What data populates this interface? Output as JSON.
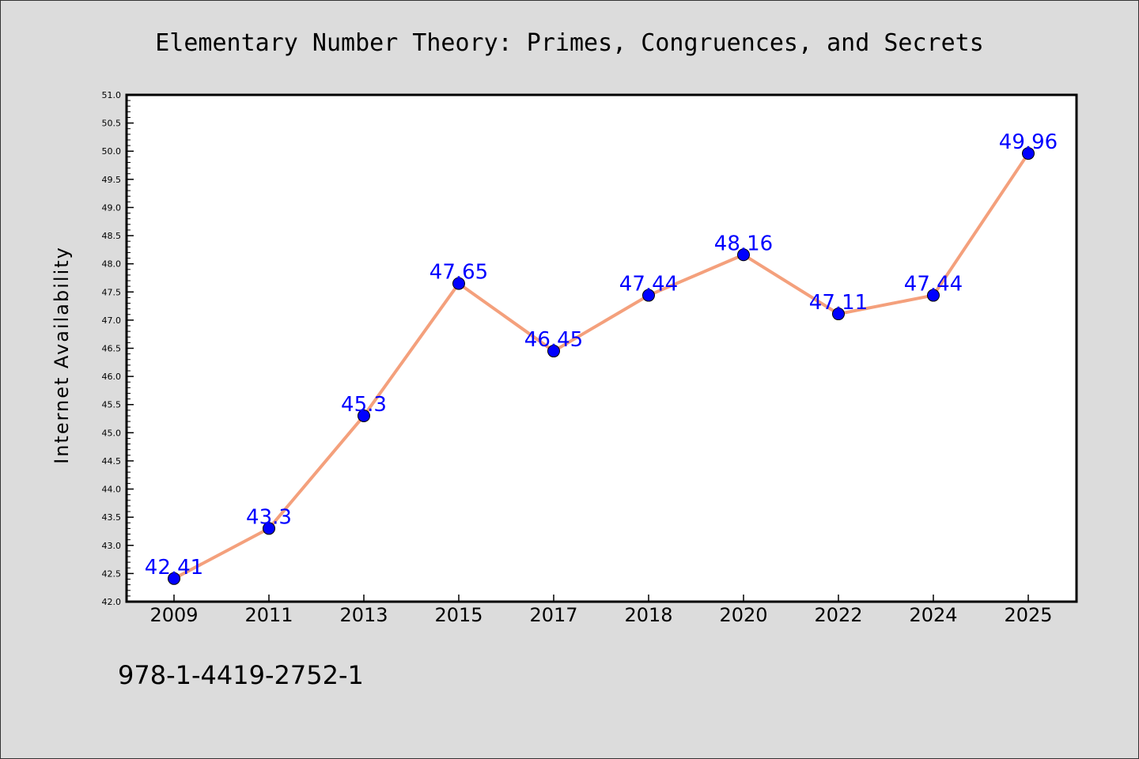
{
  "footer": {
    "isbn": "978-1-4419-2752-1"
  },
  "chart_data": {
    "type": "line",
    "title": "Elementary Number Theory: Primes, Congruences, and Secrets",
    "xlabel": "",
    "ylabel": "Internet Availability",
    "categories": [
      "2009",
      "2011",
      "2013",
      "2015",
      "2017",
      "2018",
      "2020",
      "2022",
      "2024",
      "2025"
    ],
    "series": [
      {
        "values": [
          42.41,
          43.3,
          45.3,
          47.65,
          46.45,
          47.44,
          48.16,
          47.11,
          47.44,
          49.96
        ]
      }
    ],
    "data_labels": [
      "42.41",
      "43.3",
      "45.3",
      "47.65",
      "46.45",
      "47.44",
      "48.16",
      "47.11",
      "47.44",
      "49.96"
    ],
    "ylim": [
      42.0,
      51.0
    ],
    "yticks": [
      "42.0",
      "42.5",
      "43.0",
      "43.5",
      "44.0",
      "44.5",
      "45.0",
      "45.5",
      "46.0",
      "46.5",
      "47.0",
      "47.5",
      "48.0",
      "48.5",
      "49.0",
      "49.5",
      "50.0",
      "50.5",
      "51.0"
    ],
    "grid": false,
    "legend": "none",
    "colors": {
      "line": "#f4a07c",
      "marker": "#0000ff",
      "label": "#0000ff",
      "plot_bg": "#ffffff",
      "figure_bg": "#dcdcdc"
    }
  }
}
